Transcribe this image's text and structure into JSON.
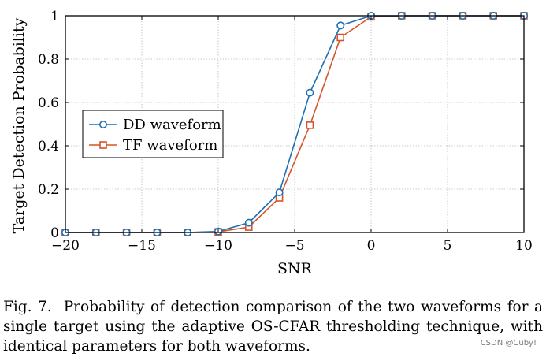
{
  "chart_data": {
    "type": "line",
    "title": "",
    "xlabel": "SNR",
    "ylabel": "Target Detection Probability",
    "xlim": [
      -20,
      10
    ],
    "ylim": [
      0,
      1
    ],
    "grid": true,
    "legend_position": "middle-left",
    "xticks": [
      -20,
      -15,
      -10,
      -5,
      0,
      5,
      10
    ],
    "xtick_labels": [
      "−20",
      "−15",
      "−10",
      "−5",
      "0",
      "5",
      "10"
    ],
    "yticks": [
      0,
      0.2,
      0.4,
      0.6,
      0.8,
      1
    ],
    "ytick_labels": [
      "0",
      "0.2",
      "0.4",
      "0.6",
      "0.8",
      "1"
    ],
    "x": [
      -20,
      -18,
      -16,
      -14,
      -12,
      -10,
      -8,
      -6,
      -4,
      -2,
      0,
      2,
      4,
      6,
      8,
      10
    ],
    "series": [
      {
        "name": "DD waveform",
        "marker": "circle",
        "color": "#1f6fb4",
        "values": [
          0,
          0,
          0,
          0,
          0,
          0.005,
          0.045,
          0.185,
          0.645,
          0.955,
          1,
          1,
          1,
          1,
          1,
          1
        ]
      },
      {
        "name": "TF waveform",
        "marker": "square",
        "color": "#d4552b",
        "values": [
          0,
          0,
          0,
          0,
          0,
          0.003,
          0.025,
          0.16,
          0.495,
          0.9,
          0.995,
          1,
          1,
          1,
          1,
          1
        ]
      }
    ]
  },
  "caption": {
    "label": "Fig. 7.",
    "text": "Probability of detection comparison of the two waveforms for a single target using the adaptive OS-CFAR thresholding technique, with identical parameters for both waveforms."
  },
  "watermark": "CSDN @Cuby!"
}
